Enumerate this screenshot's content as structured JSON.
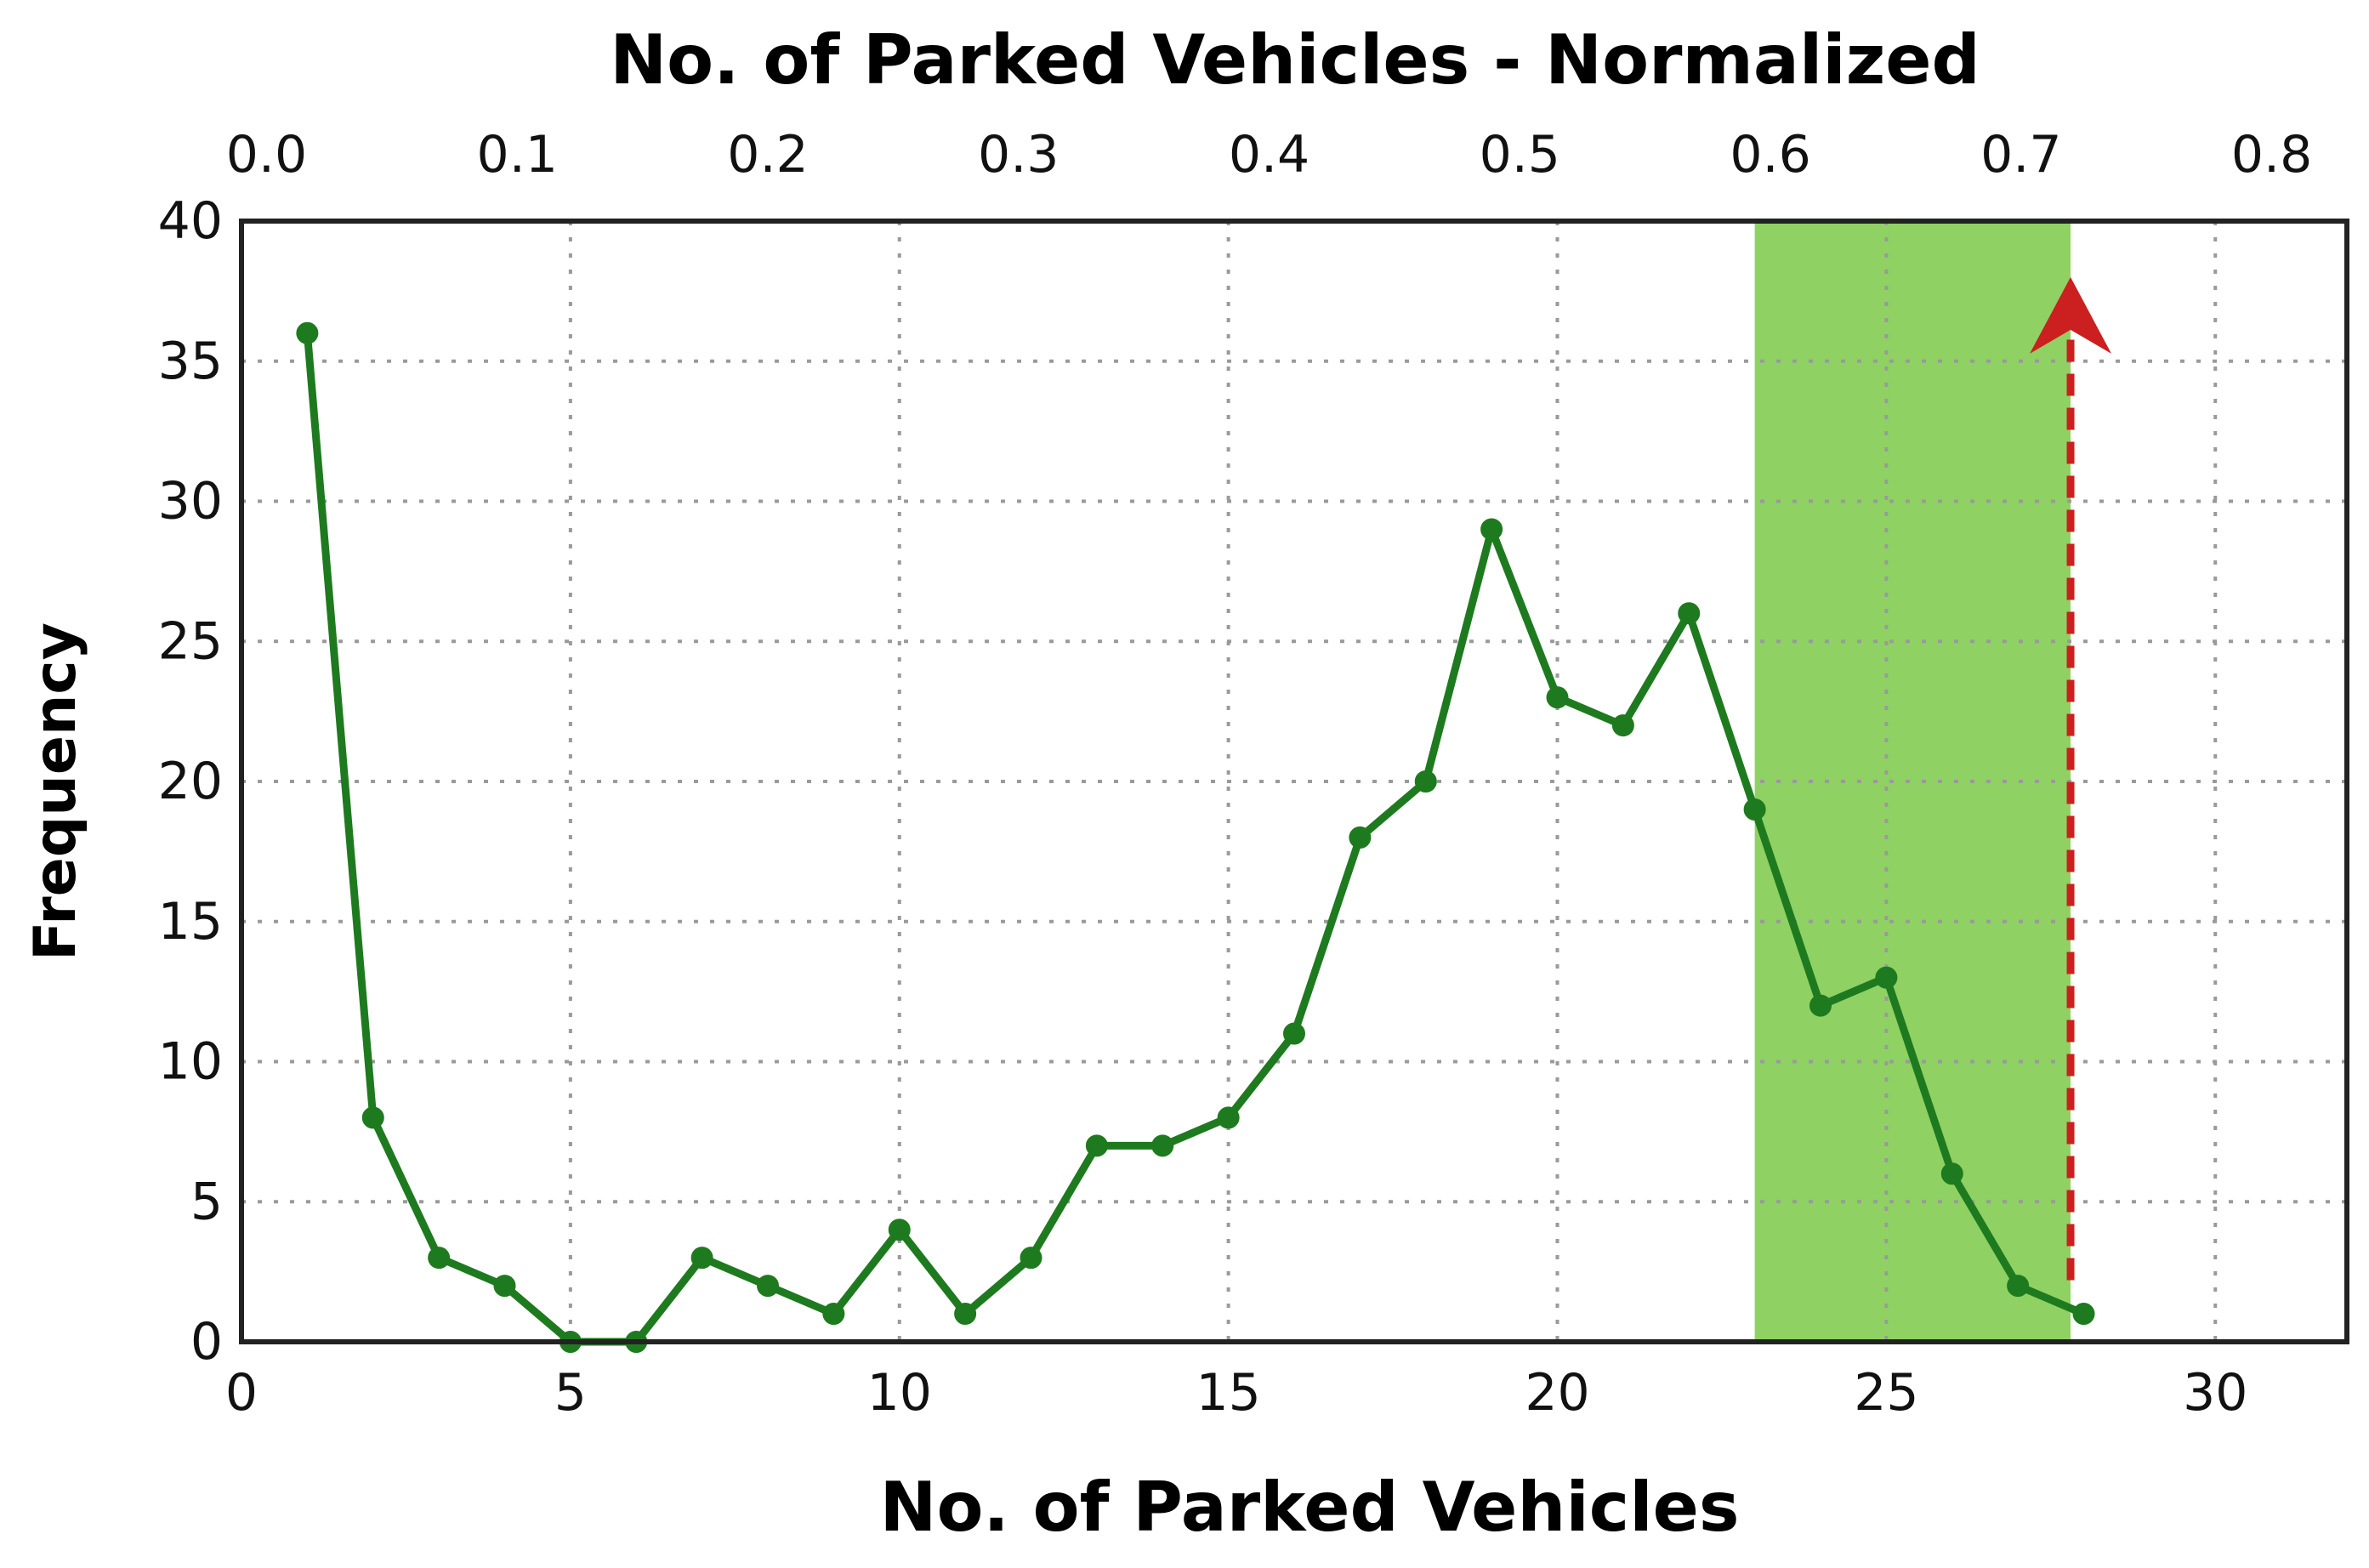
{
  "chart_data": {
    "type": "line",
    "xlabel": "No. of Parked Vehicles",
    "x2label": "No. of Parked Vehicles - Normalized",
    "ylabel": "Frequency",
    "xlim": [
      0,
      32
    ],
    "ylim": [
      0,
      40
    ],
    "x2lim": [
      -0.01,
      0.83
    ],
    "xticks": [
      "0",
      "5",
      "10",
      "15",
      "20",
      "25",
      "30"
    ],
    "x2ticks": [
      "0.0",
      "0.1",
      "0.2",
      "0.3",
      "0.4",
      "0.5",
      "0.6",
      "0.7",
      "0.8"
    ],
    "yticks": [
      "0",
      "5",
      "10",
      "15",
      "20",
      "25",
      "30",
      "35",
      "40"
    ],
    "grid": true,
    "series": [
      {
        "color": "#1e7a1e",
        "x": [
          1,
          2,
          3,
          4,
          5,
          6,
          7,
          8,
          9,
          10,
          11,
          12,
          13,
          14,
          15,
          16,
          17,
          18,
          19,
          20,
          21,
          22,
          23,
          24,
          25,
          26,
          27,
          28
        ],
        "values": [
          36,
          8,
          3,
          2,
          0,
          0,
          3,
          2,
          1,
          4,
          1,
          3,
          7,
          7,
          8,
          11,
          18,
          20,
          29,
          23,
          22,
          26,
          19,
          12,
          13,
          6,
          2,
          1
        ]
      }
    ],
    "highlight_region": {
      "x_from": 23,
      "x_to": 27.8,
      "color": "#8fd163"
    },
    "arrow": {
      "x": 27.8,
      "y_from": 2.2,
      "y_to": 38,
      "color": "#cc1f1f",
      "style": "dashed"
    }
  }
}
